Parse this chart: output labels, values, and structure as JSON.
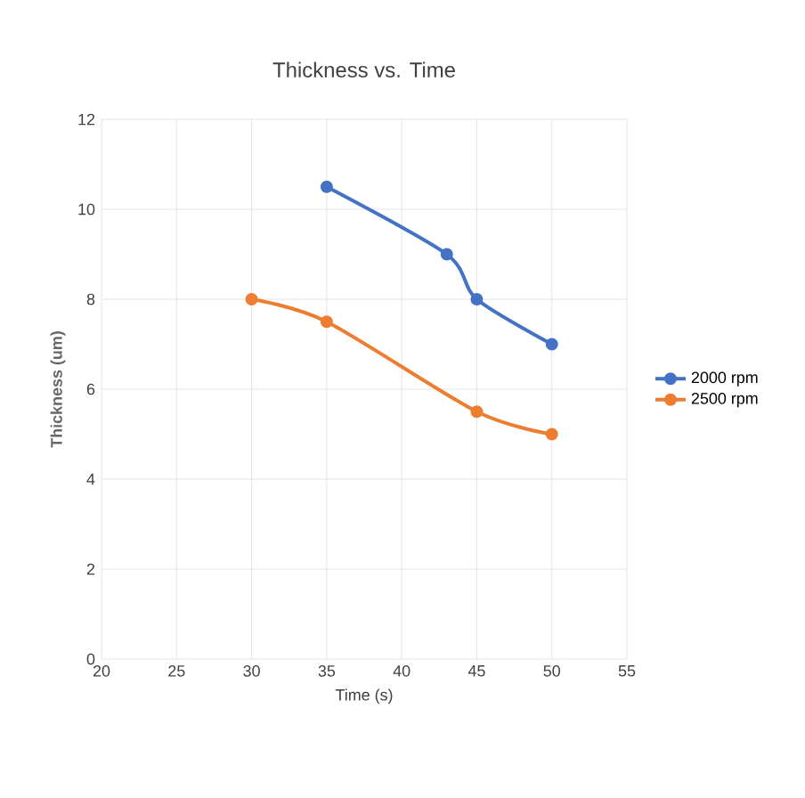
{
  "chart_data": {
    "type": "line",
    "title": "Thickness vs. Time",
    "xlabel": "Time (s)",
    "ylabel": "Thickness (um)",
    "xlim": [
      20,
      55
    ],
    "xticks": [
      20,
      25,
      30,
      35,
      40,
      45,
      50,
      55
    ],
    "ylim": [
      0,
      12
    ],
    "yticks": [
      0,
      2,
      4,
      6,
      8,
      10,
      12
    ],
    "grid": true,
    "legend": "right",
    "marker": "circle",
    "line_style": "solid",
    "series": [
      {
        "name": "2000 rpm",
        "color": "#4472c4",
        "x": [
          35,
          43,
          45,
          50
        ],
        "values": [
          10.5,
          9.0,
          8.0,
          7.0
        ]
      },
      {
        "name": "2500 rpm",
        "color": "#ed7d31",
        "x": [
          30,
          35,
          45,
          50
        ],
        "values": [
          8.0,
          7.5,
          5.5,
          5.0
        ]
      }
    ]
  }
}
